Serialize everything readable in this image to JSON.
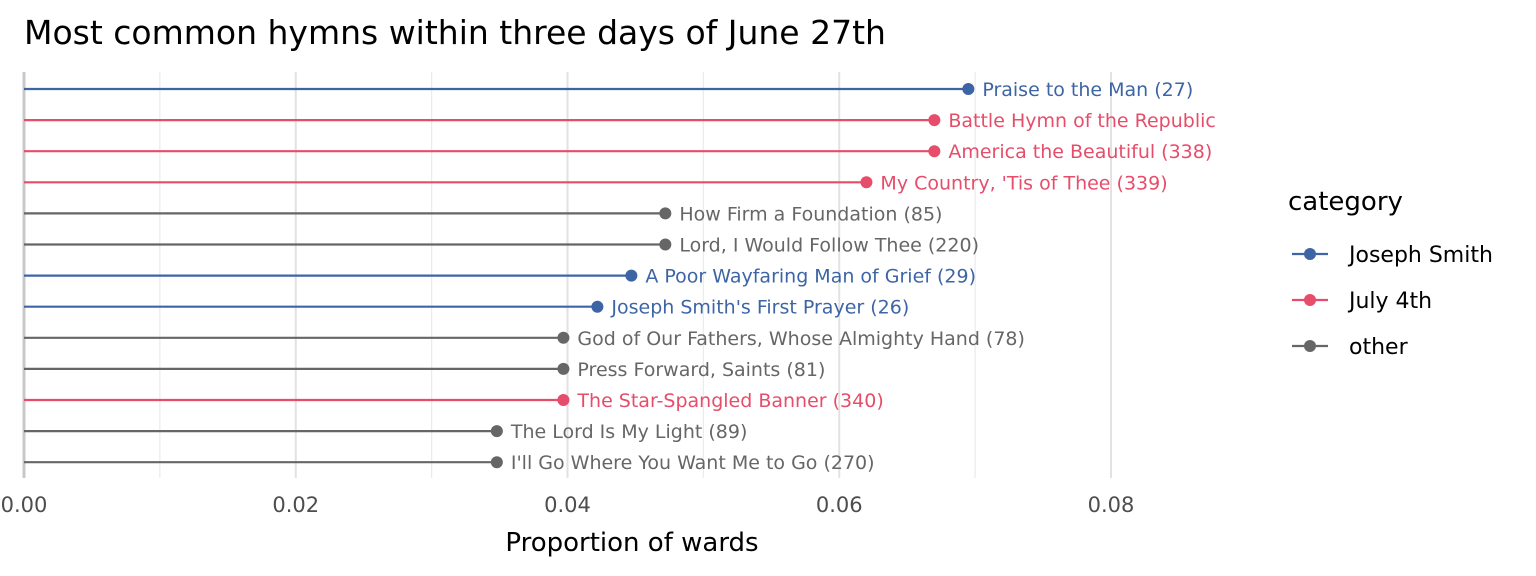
{
  "chart_data": {
    "type": "lollipop",
    "title": "Most common hymns within three days of June 27th",
    "xlabel": "Proportion of wards",
    "ylabel": "",
    "xlim": [
      0,
      0.09
    ],
    "x_ticks": [
      0.0,
      0.02,
      0.04,
      0.06,
      0.08
    ],
    "x_tick_labels": [
      "0.00",
      "0.02",
      "0.04",
      "0.06",
      "0.08"
    ],
    "grid": true,
    "legend": {
      "title": "category",
      "position": "right",
      "entries": [
        {
          "name": "Joseph Smith",
          "color": "#3d65a5"
        },
        {
          "name": "July 4th",
          "color": "#e64d6a"
        },
        {
          "name": "other",
          "color": "#666666"
        }
      ]
    },
    "points": [
      {
        "label": "Praise to the Man (27)",
        "value": 0.0695,
        "category": "Joseph Smith"
      },
      {
        "label": "Battle Hymn of the Republic",
        "value": 0.067,
        "category": "July 4th"
      },
      {
        "label": "America the Beautiful (338)",
        "value": 0.067,
        "category": "July 4th"
      },
      {
        "label": "My Country, 'Tis of Thee (339)",
        "value": 0.062,
        "category": "July 4th"
      },
      {
        "label": "How Firm a Foundation (85)",
        "value": 0.0472,
        "category": "other"
      },
      {
        "label": "Lord, I Would Follow Thee (220)",
        "value": 0.0472,
        "category": "other"
      },
      {
        "label": "A Poor Wayfaring Man of Grief (29)",
        "value": 0.0447,
        "category": "Joseph Smith"
      },
      {
        "label": "Joseph Smith's First Prayer (26)",
        "value": 0.0422,
        "category": "Joseph Smith"
      },
      {
        "label": "God of Our Fathers, Whose Almighty Hand (78)",
        "value": 0.0397,
        "category": "other"
      },
      {
        "label": "Press Forward, Saints (81)",
        "value": 0.0397,
        "category": "other"
      },
      {
        "label": "The Star-Spangled Banner (340)",
        "value": 0.0397,
        "category": "July 4th"
      },
      {
        "label": "The Lord Is My Light (89)",
        "value": 0.0348,
        "category": "other"
      },
      {
        "label": "I'll Go Where You Want Me to Go (270)",
        "value": 0.0348,
        "category": "other"
      }
    ]
  }
}
